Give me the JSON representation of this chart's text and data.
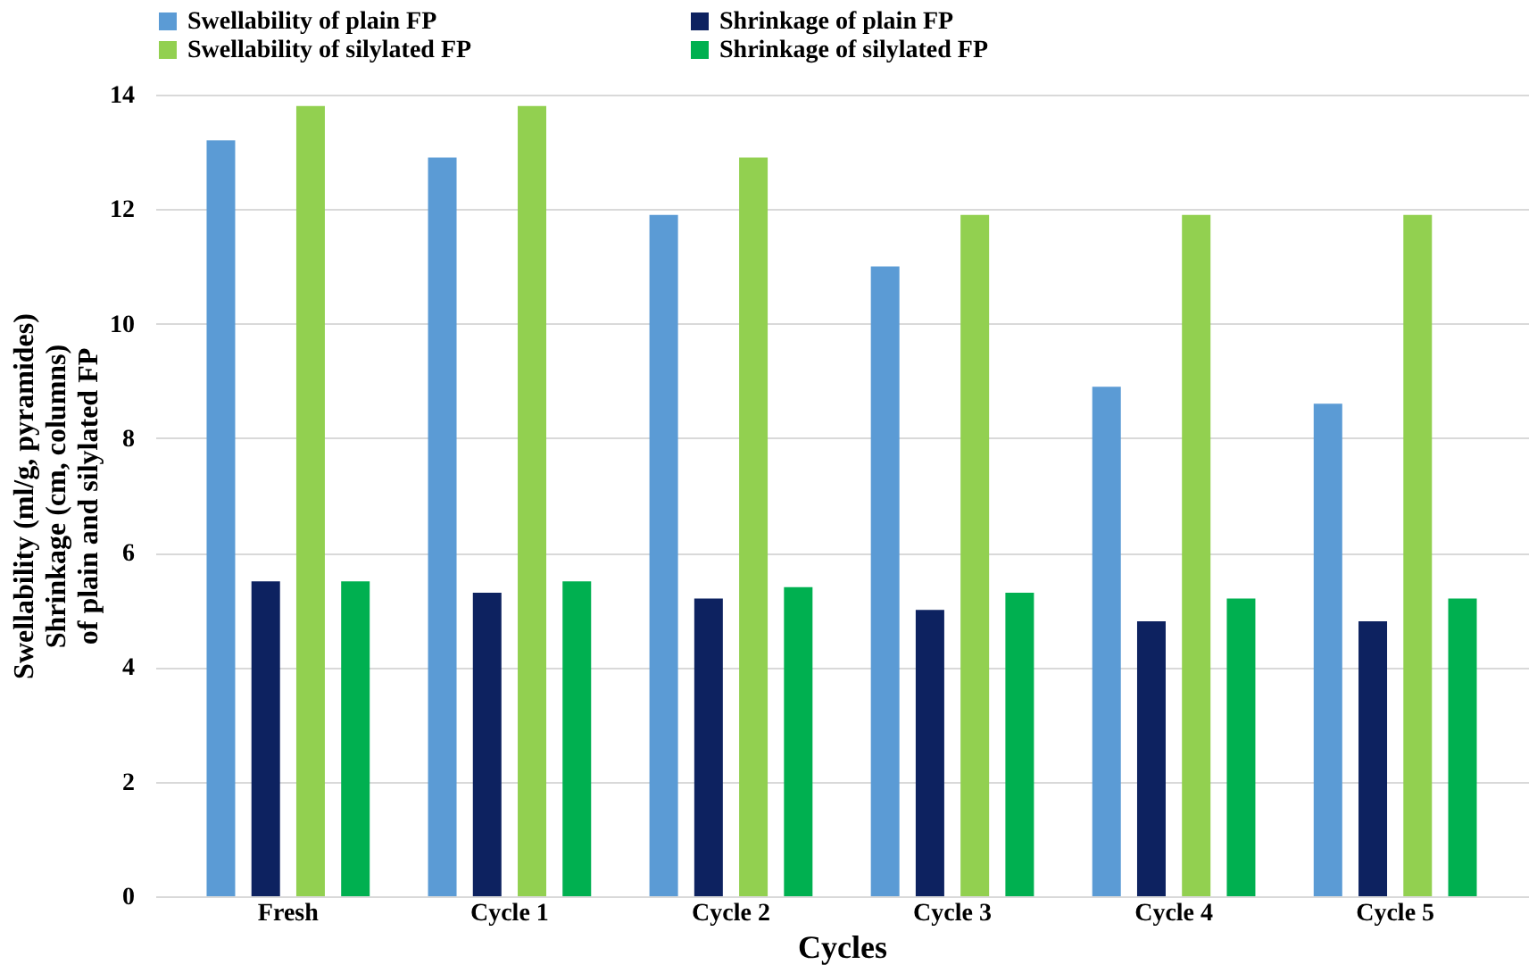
{
  "chart_data": {
    "type": "bar",
    "xlabel": "Cycles",
    "ylabel": [
      "Swellability (ml/g, pyramides)",
      "Shrinkage (cm, columns)",
      "of plain and silylated FP"
    ],
    "categories": [
      "Fresh",
      "Cycle 1",
      "Cycle 2",
      "Cycle 3",
      "Cycle 4",
      "Cycle 5"
    ],
    "series": [
      {
        "name": "Swellability of plain FP",
        "color": "#5b9bd5",
        "values": [
          13.2,
          12.9,
          11.9,
          11.0,
          8.9,
          8.6
        ]
      },
      {
        "name": "Shrinkage of plain FP",
        "color": "#0d2260",
        "values": [
          5.5,
          5.3,
          5.2,
          5.0,
          4.8,
          4.8
        ]
      },
      {
        "name": "Swellability of silylated FP",
        "color": "#92d050",
        "values": [
          13.8,
          13.8,
          12.9,
          11.9,
          11.9,
          11.9
        ]
      },
      {
        "name": "Shrinkage of silylated FP",
        "color": "#00b050",
        "values": [
          5.5,
          5.5,
          5.4,
          5.3,
          5.2,
          5.2
        ]
      }
    ],
    "ylim": [
      0,
      14
    ],
    "yticks": [
      0,
      2,
      4,
      6,
      8,
      10,
      12,
      14
    ],
    "grid": "y",
    "legend": "top"
  }
}
